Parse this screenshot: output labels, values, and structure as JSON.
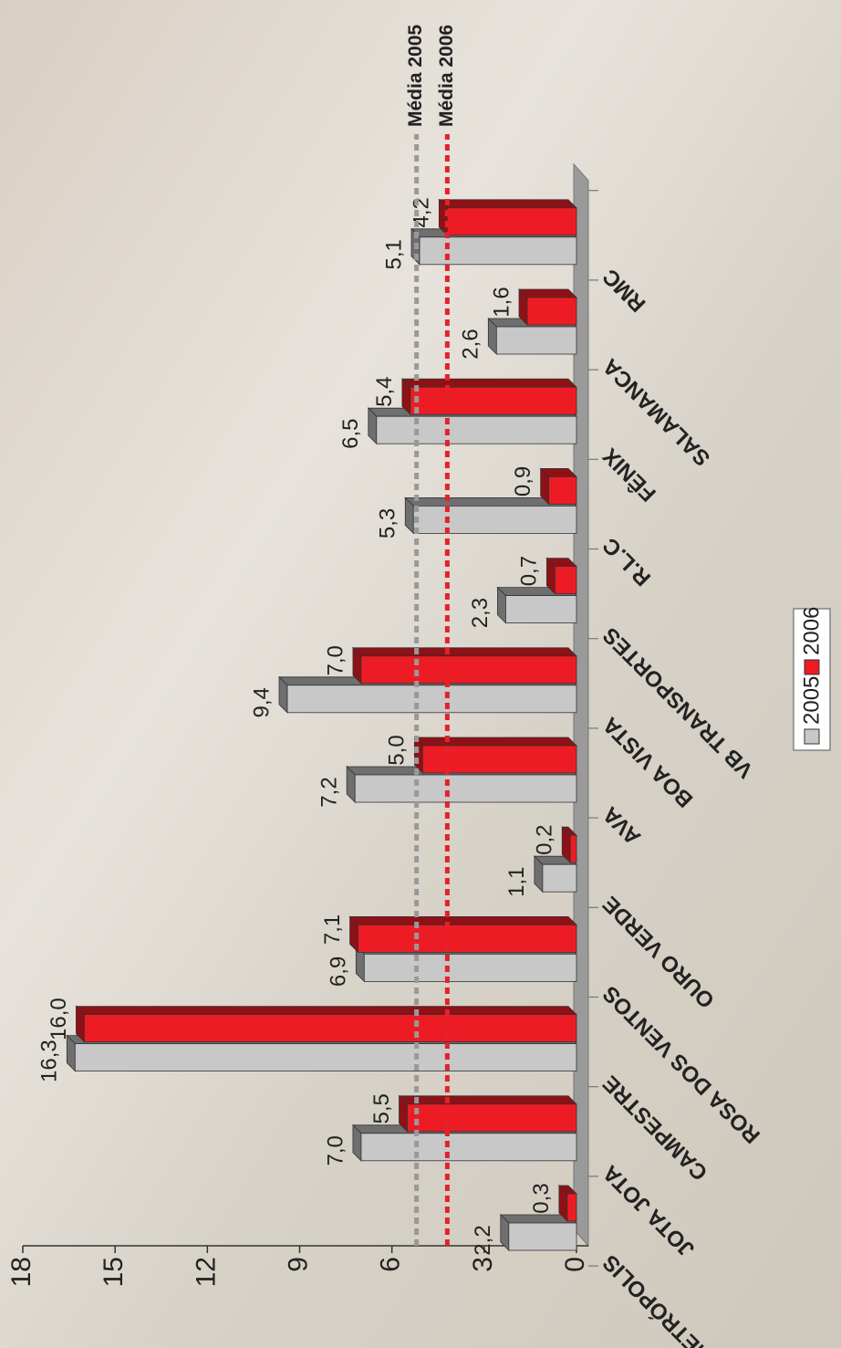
{
  "chart_data": {
    "type": "bar",
    "categories": [
      "METRÓPOLIS",
      "JOTA JOTA",
      "CAMPESTRE",
      "ROSA DOS VENTOS",
      "OURO VERDE",
      "AVA",
      "BOA VISTA",
      "VB TRANSPORTES",
      "R.L.C",
      "FÊNIX",
      "SALAMANCA",
      "RMC"
    ],
    "series": [
      {
        "name": "2005",
        "color": "#c8c8c8",
        "values": [
          2.2,
          7.0,
          16.3,
          6.9,
          1.1,
          7.2,
          9.4,
          2.3,
          5.3,
          6.5,
          2.6,
          5.1
        ],
        "value_labels": [
          "2,2",
          "7,0",
          "16,3",
          "6,9",
          "1,1",
          "7,2",
          "9,4",
          "2,3",
          "5,3",
          "6,5",
          "2,6",
          "5,1"
        ]
      },
      {
        "name": "2006",
        "color": "#ed1c24",
        "values": [
          0.3,
          5.5,
          16.0,
          7.1,
          0.2,
          5.0,
          7.0,
          0.7,
          0.9,
          5.4,
          1.6,
          4.2
        ],
        "value_labels": [
          "0,3",
          "5,5",
          "16,0",
          "7,1",
          "0,2",
          "5,0",
          "7,0",
          "0,7",
          "0,9",
          "5,4",
          "1,6",
          "4,2"
        ]
      }
    ],
    "ylim": [
      0,
      18
    ],
    "yticks": [
      0,
      3,
      6,
      9,
      12,
      15,
      18
    ],
    "mean_lines": [
      {
        "label": "Média 2005",
        "value": 5.2,
        "color": "#999999"
      },
      {
        "label": "Média 2006",
        "value": 4.2,
        "color": "#e4222a"
      }
    ],
    "rotation": -90
  }
}
